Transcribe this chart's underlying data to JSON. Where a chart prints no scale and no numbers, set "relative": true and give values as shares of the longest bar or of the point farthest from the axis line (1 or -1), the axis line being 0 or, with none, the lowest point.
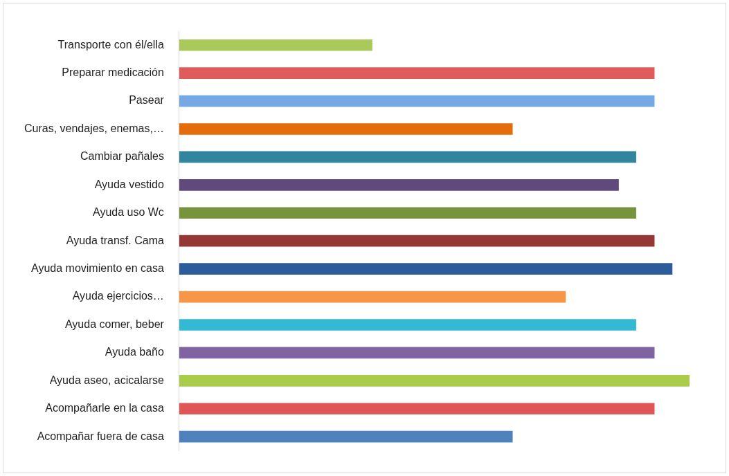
{
  "chart_data": {
    "type": "bar",
    "orientation": "horizontal",
    "relative": true,
    "grid": false,
    "legend": false,
    "categories": [
      "Transporte con él/ella",
      "Preparar medicación",
      "Pasear",
      "Curas, vendajes, enemas,…",
      "Cambiar pañales",
      "Ayuda vestido",
      "Ayuda uso Wc",
      "Ayuda transf. Cama",
      "Ayuda movimiento en casa",
      "Ayuda ejercicios…",
      "Ayuda comer, beber",
      "Ayuda baño",
      "Ayuda aseo, acicalarse",
      "Acompañarle en la casa",
      "Acompañar fuera de casa"
    ],
    "values": [
      0.378,
      0.931,
      0.931,
      0.653,
      0.895,
      0.861,
      0.895,
      0.931,
      0.966,
      0.757,
      0.895,
      0.931,
      1,
      0.931,
      0.653
    ],
    "colors": [
      "#a9c95a",
      "#e05c5a",
      "#74a9e6",
      "#e46c0a",
      "#31859c",
      "#604a7b",
      "#77933c",
      "#953735",
      "#2c5d9a",
      "#f79646",
      "#33b9d3",
      "#8064a2",
      "#a9cc4a",
      "#e05555",
      "#4f81bd"
    ]
  }
}
